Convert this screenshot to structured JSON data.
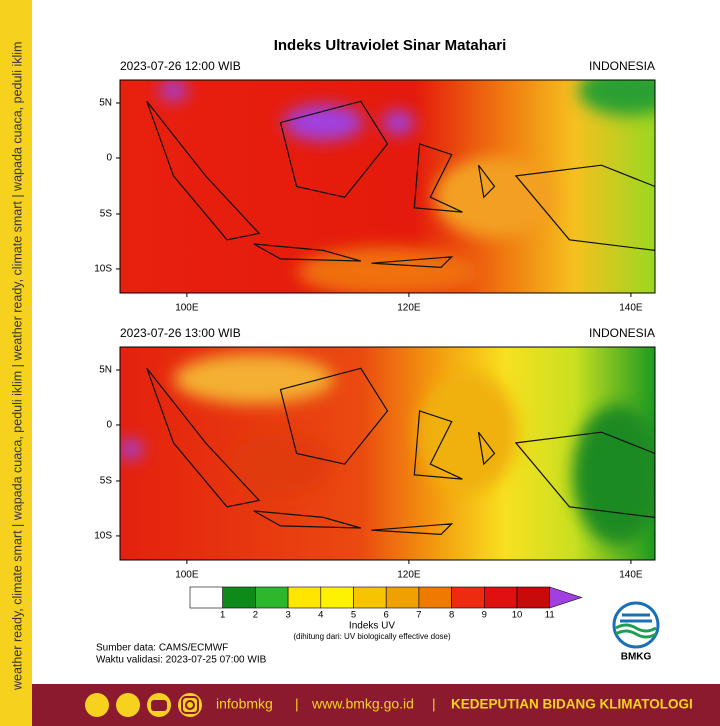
{
  "title": "Indeks Ultraviolet Sinar Matahari",
  "panels": [
    {
      "time": "2023-07-26  12:00 WIB",
      "region": "INDONESIA"
    },
    {
      "time": "2023-07-26  13:00 WIB",
      "region": "INDONESIA"
    }
  ],
  "lat_labels": [
    "5N",
    "0",
    "5S",
    "10S"
  ],
  "lon_labels": [
    "100E",
    "120E",
    "140E"
  ],
  "colorbar": {
    "labels": [
      "1",
      "2",
      "3",
      "4",
      "5",
      "6",
      "7",
      "8",
      "9",
      "10",
      "11"
    ],
    "colors": [
      "#ffffff",
      "#0d8a1a",
      "#2cb82c",
      "#ffe600",
      "#fff200",
      "#f6c400",
      "#f0a000",
      "#ee7a00",
      "#ee2a10",
      "#e01010",
      "#c80a0a"
    ],
    "arrow_color": "#a040e0",
    "title": "Indeks UV",
    "note": "(dihitung dari: UV biologically effective dose)"
  },
  "source": "Sumber data: CAMS/ECMWF",
  "validity": "Waktu validasi: 2023-07-25 07:00 WIB",
  "logo": "BMKG",
  "side_text": "weather ready, climate smart  |  wapada cuaca, peduli iklim  |  weather ready, climate smart  |  wapada cuaca, peduli iklim",
  "footer": {
    "handle": "infobmkg",
    "site": "www.bmkg.go.id",
    "org": "KEDEPUTIAN BIDANG KLIMATOLOGI"
  }
}
